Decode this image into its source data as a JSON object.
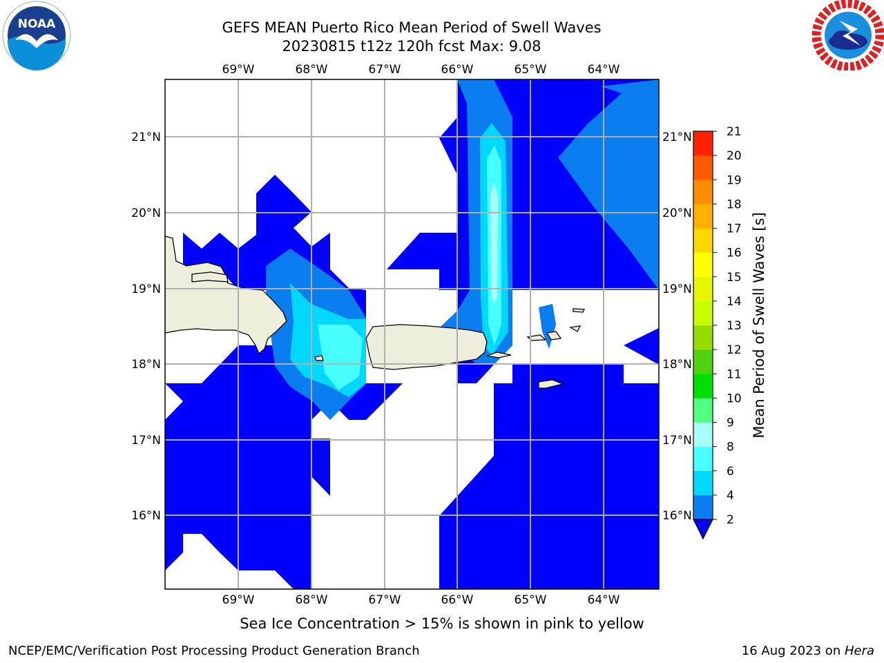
{
  "header": {
    "title_line1": "GEFS MEAN Puerto Rico Mean Period of Swell Waves",
    "title_line2": "20230815 t12z 120h fcst   Max: 9.08"
  },
  "logos": {
    "left": {
      "icon": "noaa-logo",
      "text": "NOAA"
    },
    "right": {
      "icon": "nws-logo"
    }
  },
  "map": {
    "lon_ticks": [
      "69°W",
      "68°W",
      "67°W",
      "66°W",
      "65°W",
      "64°W"
    ],
    "lat_ticks": [
      "21°N",
      "20°N",
      "19°N",
      "18°N",
      "17°N",
      "16°N"
    ],
    "land_color": "#eeeedd",
    "grid_color": "#b0b0b0"
  },
  "colorbar": {
    "label": "Mean Period of Swell Waves [s]",
    "levels": [
      "2",
      "4",
      "6",
      "8",
      "9",
      "10",
      "11",
      "12",
      "13",
      "14",
      "15",
      "16",
      "17",
      "18",
      "19",
      "20",
      "21"
    ],
    "colors": [
      "#0a7ef0",
      "#00d8ff",
      "#48ffff",
      "#a8fff8",
      "#52ff82",
      "#00e000",
      "#4fd20f",
      "#96dc00",
      "#c8ff00",
      "#e6f500",
      "#ffff00",
      "#ffd800",
      "#ffb000",
      "#ff8c00",
      "#ff5a00",
      "#ff2000"
    ],
    "under_color": "#0000ff"
  },
  "caption": "Sea Ice Concentration > 15% is shown in pink to yellow",
  "footer": {
    "left": "NCEP/EMC/Verification Post Processing Product Generation Branch",
    "right_date": "16 Aug 2023 on ",
    "right_host": "Hera"
  }
}
